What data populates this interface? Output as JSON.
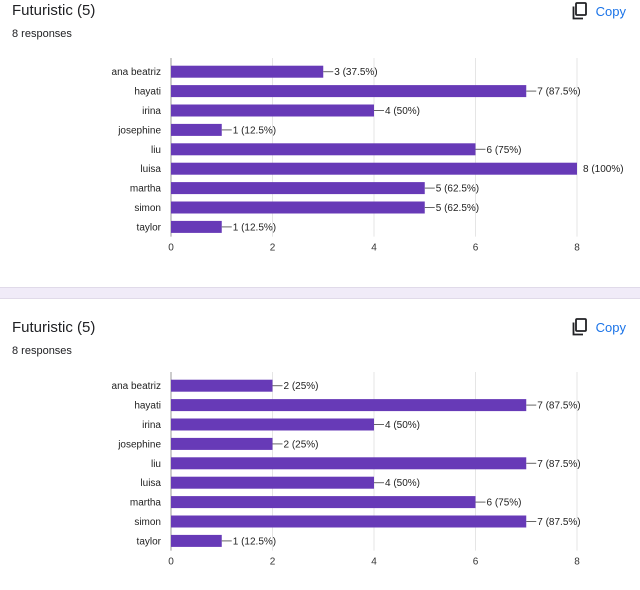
{
  "questions": [
    {
      "title": "Futuristic (5)",
      "responses": "8 responses",
      "copy_label": "Copy"
    },
    {
      "title": "Futuristic (5)",
      "responses": "8 responses",
      "copy_label": "Copy"
    }
  ],
  "colors": {
    "bar": "#673ab7",
    "accent": "#1a73e8",
    "divider": "#f0ebf8"
  },
  "chart_data": [
    {
      "type": "bar",
      "orientation": "horizontal",
      "categories": [
        "ana beatriz",
        "hayati",
        "irina",
        "josephine",
        "liu",
        "luisa",
        "martha",
        "simon",
        "taylor"
      ],
      "values": [
        3,
        7,
        4,
        1,
        6,
        8,
        5,
        5,
        1
      ],
      "labels": [
        "3 (37.5%)",
        "7 (87.5%)",
        "4 (50%)",
        "1 (12.5%)",
        "6 (75%)",
        "8 (100%)",
        "5 (62.5%)",
        "5 (62.5%)",
        "1 (12.5%)"
      ],
      "xlim": [
        0,
        8
      ],
      "xticks": [
        "0",
        "2",
        "4",
        "6",
        "8"
      ],
      "grid": true
    },
    {
      "type": "bar",
      "orientation": "horizontal",
      "categories": [
        "ana beatriz",
        "hayati",
        "irina",
        "josephine",
        "liu",
        "luisa",
        "martha",
        "simon",
        "taylor"
      ],
      "values": [
        2,
        7,
        4,
        2,
        7,
        4,
        6,
        7,
        1
      ],
      "labels": [
        "2 (25%)",
        "7 (87.5%)",
        "4 (50%)",
        "2 (25%)",
        "7 (87.5%)",
        "4 (50%)",
        "6 (75%)",
        "7 (87.5%)",
        "1 (12.5%)"
      ],
      "xlim": [
        0,
        8
      ],
      "xticks": [
        "0",
        "2",
        "4",
        "6",
        "8"
      ],
      "grid": true
    }
  ]
}
